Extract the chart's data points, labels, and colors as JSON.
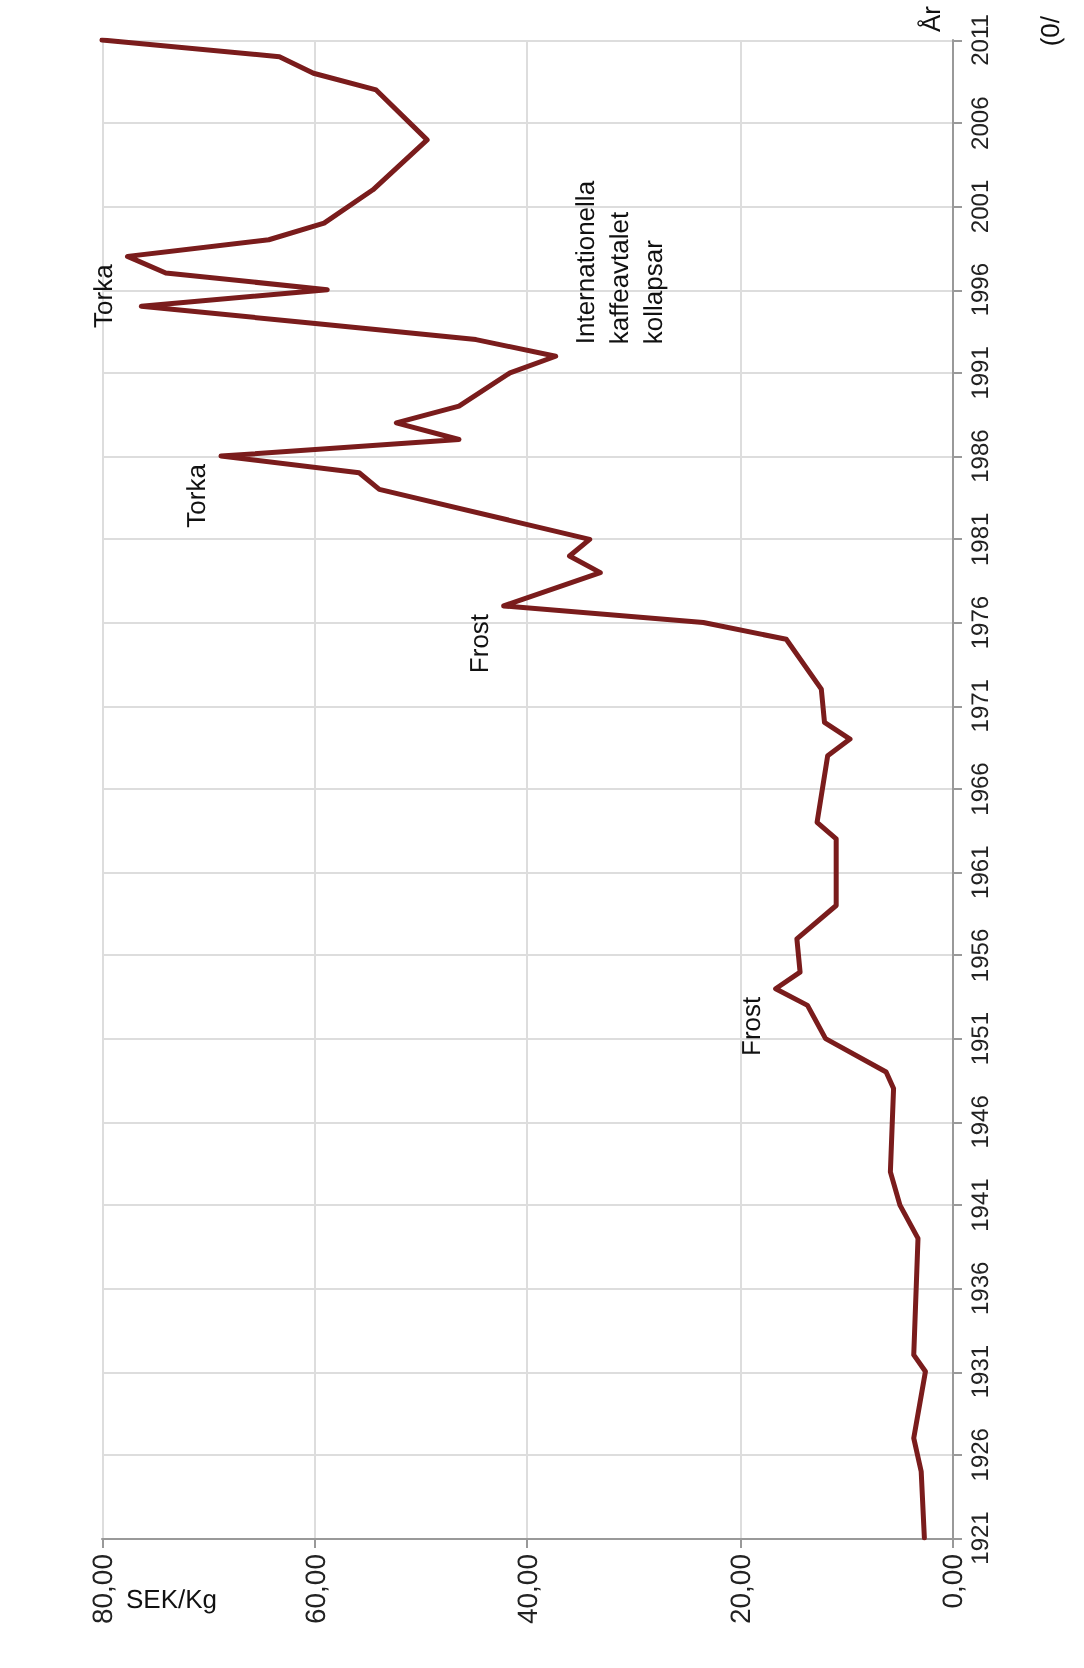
{
  "chart_data": {
    "type": "line",
    "xlabel": "SEK/Kg",
    "ylabel": "År",
    "x": [
      2.6,
      2.9,
      3.6,
      2.5,
      3.6,
      3.2,
      4.9,
      5.8,
      5.5,
      6.2,
      11.9,
      13.6,
      16.6,
      14.3,
      14.6,
      10.9,
      10.9,
      12.7,
      11.7,
      9.6,
      12.0,
      12.3,
      15.6,
      23.4,
      42.2,
      33.1,
      36.0,
      34.1,
      53.9,
      55.8,
      68.8,
      46.4,
      52.3,
      46.4,
      41.6,
      37.3,
      44.8,
      60.4,
      76.3,
      58.8,
      74.0,
      77.6,
      64.3,
      59.1,
      54.5,
      49.4,
      54.2,
      60.1,
      63.3,
      80
    ],
    "series": [
      {
        "color": "#7a1c1c",
        "values": [
          1921,
          1925,
          1927,
          1931,
          1932,
          1939,
          1941,
          1943,
          1948,
          1949,
          1951,
          1953,
          1954,
          1955,
          1957,
          1959,
          1963,
          1964,
          1968,
          1969,
          1970,
          1972,
          1975,
          1976,
          1977,
          1979,
          1980,
          1981,
          1984,
          1985,
          1986,
          1987,
          1988,
          1989,
          1991,
          1992,
          1993,
          1994,
          1995,
          1996,
          1997,
          1998,
          1999,
          2000,
          2002,
          2005,
          2008,
          2009,
          2010,
          2011
        ]
      }
    ],
    "ylim": [
      1921,
      2011
    ],
    "yticks": [
      1921,
      1926,
      1931,
      1936,
      1941,
      1946,
      1951,
      1956,
      1961,
      1966,
      1971,
      1976,
      1981,
      1986,
      1991,
      1996,
      2001,
      2006,
      2011
    ],
    "xlim": [
      80,
      0
    ],
    "xticks": [
      {
        "value": 80,
        "label": "80,00"
      },
      {
        "value": 60,
        "label": "60,00"
      },
      {
        "value": 40,
        "label": "40,00"
      },
      {
        "value": 20,
        "label": "20,00"
      },
      {
        "value": 0,
        "label": "0,00"
      }
    ],
    "annotations": [
      {
        "text": "Frost",
        "x": 16.6,
        "y": 1954
      },
      {
        "text": "Frost",
        "x": 42.2,
        "y": 1977
      },
      {
        "text": "Torka",
        "x": 68.8,
        "y": 1986
      },
      {
        "text": "Internationella\nkaffeavtalet\nkollapsar",
        "x": 37.3,
        "y": 1992
      },
      {
        "text": "Torka",
        "x": 77.6,
        "y": 1998
      },
      "(0/"
    ],
    "grid": true,
    "marker": "none",
    "line_style": "solid"
  }
}
